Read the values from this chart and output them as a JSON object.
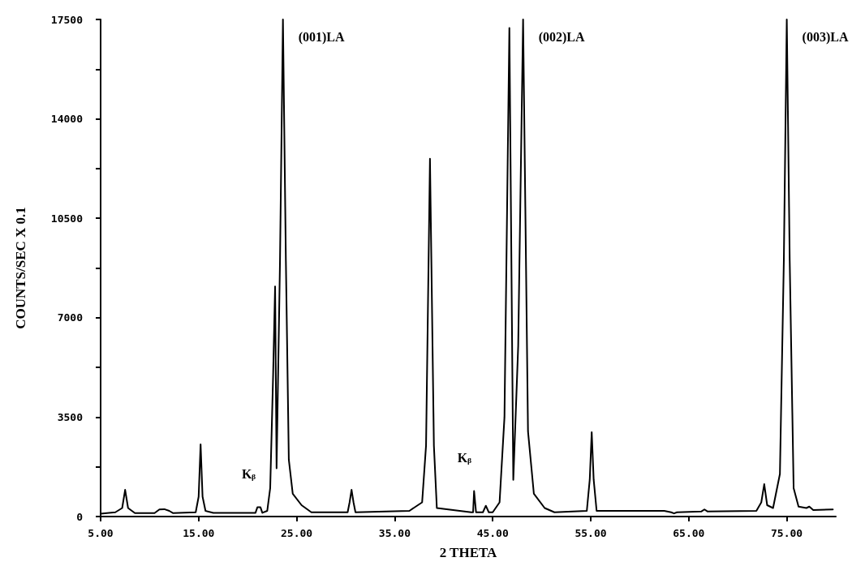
{
  "chart_data": {
    "type": "line",
    "xlabel": "2 THETA",
    "ylabel": "COUNTS/SEC X 0.1",
    "xlim": [
      5,
      80
    ],
    "ylim": [
      0,
      17500
    ],
    "xticks": [
      {
        "value": 5,
        "label": "5.00"
      },
      {
        "value": 15,
        "label": "15.00"
      },
      {
        "value": 25,
        "label": "25.00"
      },
      {
        "value": 35,
        "label": "35.00"
      },
      {
        "value": 45,
        "label": "45.00"
      },
      {
        "value": 55,
        "label": "55.00"
      },
      {
        "value": 65,
        "label": "65.00"
      },
      {
        "value": 75,
        "label": "75.00"
      }
    ],
    "yticks": [
      0,
      {
        "value": 1750,
        "label": null
      },
      3500,
      {
        "value": 5250,
        "label": null
      },
      7000,
      {
        "value": 8750,
        "label": null
      },
      10500,
      {
        "value": 12250,
        "label": null
      },
      14000,
      {
        "value": 15750,
        "label": null
      },
      17500
    ],
    "grid": false,
    "marker": "none",
    "line_style": "solid",
    "annotations": [
      {
        "text": "(001)LA",
        "x": 23.6,
        "y": 17500
      },
      {
        "text": "(002)LA",
        "x": 48.1,
        "y": 17500
      },
      {
        "text": "(003)LA",
        "x": 75.0,
        "y": 17500
      },
      {
        "text": "Kᵦ",
        "x": 21.1,
        "y": 330
      },
      {
        "text": "Kᵦ",
        "x": 43.1,
        "y": 900
      }
    ],
    "series": [
      {
        "color": "#000000",
        "x": [
          5.0,
          6.5,
          7.2,
          7.5,
          7.8,
          8.5,
          10.5,
          11.0,
          11.5,
          12.0,
          12.4,
          14.7,
          15.0,
          15.2,
          15.4,
          15.7,
          16.5,
          20.8,
          21.0,
          21.3,
          21.5,
          22.0,
          22.3,
          22.6,
          22.8,
          22.95,
          23.3,
          23.6,
          23.9,
          24.2,
          24.6,
          25.5,
          26.5,
          30.2,
          30.4,
          30.6,
          30.8,
          31.0,
          36.5,
          37.8,
          38.2,
          38.6,
          39.0,
          39.3,
          42.8,
          43.0,
          43.1,
          43.3,
          44.0,
          44.3,
          44.6,
          45.0,
          45.7,
          46.2,
          46.7,
          47.1,
          47.6,
          48.1,
          48.6,
          49.2,
          50.3,
          51.3,
          54.6,
          54.9,
          55.1,
          55.3,
          55.6,
          62.5,
          63.2,
          63.5,
          63.8,
          66.3,
          66.6,
          66.9,
          71.9,
          72.4,
          72.7,
          73.0,
          73.6,
          74.3,
          74.7,
          75.0,
          75.3,
          75.7,
          76.2,
          77.0,
          77.3,
          77.7,
          79.7
        ],
        "values": [
          100,
          150,
          300,
          940,
          300,
          120,
          120,
          250,
          260,
          200,
          120,
          150,
          700,
          2540,
          700,
          200,
          130,
          130,
          330,
          330,
          130,
          200,
          1000,
          5000,
          8100,
          1700,
          9000,
          17500,
          9000,
          2000,
          800,
          400,
          150,
          150,
          500,
          940,
          500,
          150,
          200,
          500,
          2500,
          12600,
          2500,
          300,
          150,
          150,
          900,
          150,
          150,
          380,
          150,
          150,
          500,
          3500,
          17200,
          1290,
          6000,
          17500,
          3000,
          800,
          300,
          150,
          200,
          1300,
          2970,
          1300,
          200,
          200,
          150,
          110,
          150,
          180,
          250,
          180,
          200,
          500,
          1140,
          400,
          300,
          1500,
          9000,
          17500,
          9000,
          1000,
          350,
          300,
          350,
          230,
          250
        ]
      }
    ]
  }
}
